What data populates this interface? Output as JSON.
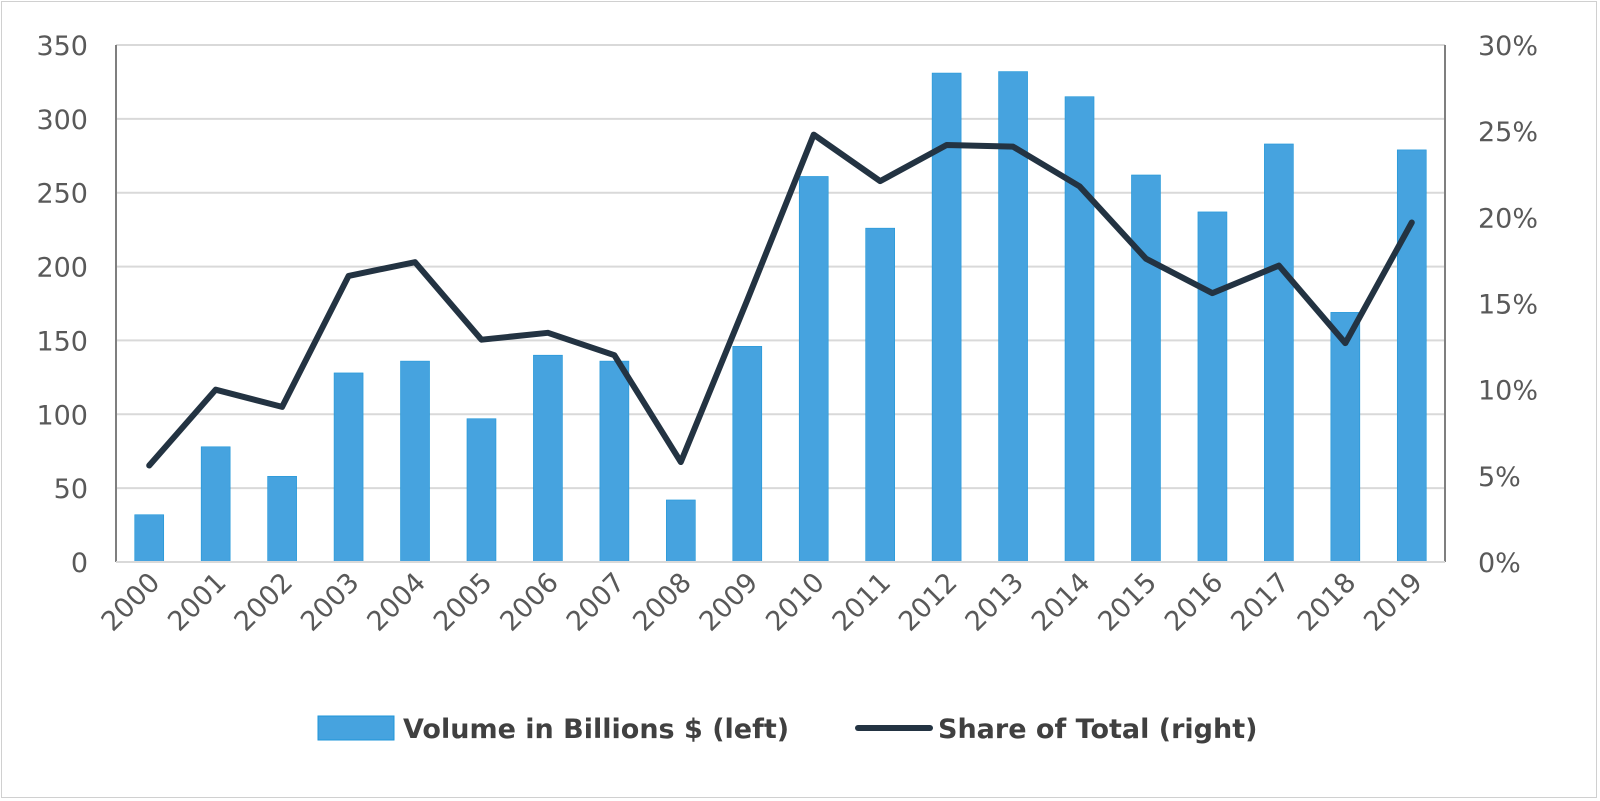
{
  "chart_data": {
    "type": "bar+line",
    "categories": [
      "2000",
      "2001",
      "2002",
      "2003",
      "2004",
      "2005",
      "2006",
      "2007",
      "2008",
      "2009",
      "2010",
      "2011",
      "2012",
      "2013",
      "2014",
      "2015",
      "2016",
      "2017",
      "2018",
      "2019"
    ],
    "series": [
      {
        "name": "Volume in Billions $ (left)",
        "type": "bar",
        "axis": "left",
        "color": "#46A3DF",
        "values": [
          32,
          78,
          58,
          128,
          136,
          97,
          140,
          136,
          42,
          146,
          261,
          226,
          331,
          332,
          315,
          262,
          237,
          283,
          169,
          279
        ]
      },
      {
        "name": "Share of Total (right)",
        "type": "line",
        "axis": "right",
        "color": "#233342",
        "values": [
          5.6,
          10.0,
          9.0,
          16.6,
          17.4,
          12.9,
          13.3,
          12.0,
          5.8,
          15.2,
          24.8,
          22.1,
          24.2,
          24.1,
          21.8,
          17.6,
          15.6,
          17.2,
          12.7,
          19.7
        ]
      }
    ],
    "left_axis": {
      "range": [
        0,
        350
      ],
      "ticks": [
        "0",
        "50",
        "100",
        "150",
        "200",
        "250",
        "300",
        "350"
      ]
    },
    "right_axis": {
      "range": [
        0,
        30
      ],
      "unit": "%",
      "ticks": [
        "0%",
        "5%",
        "10%",
        "15%",
        "20%",
        "25%",
        "30%"
      ]
    },
    "grid": true,
    "legend": "bottom"
  }
}
